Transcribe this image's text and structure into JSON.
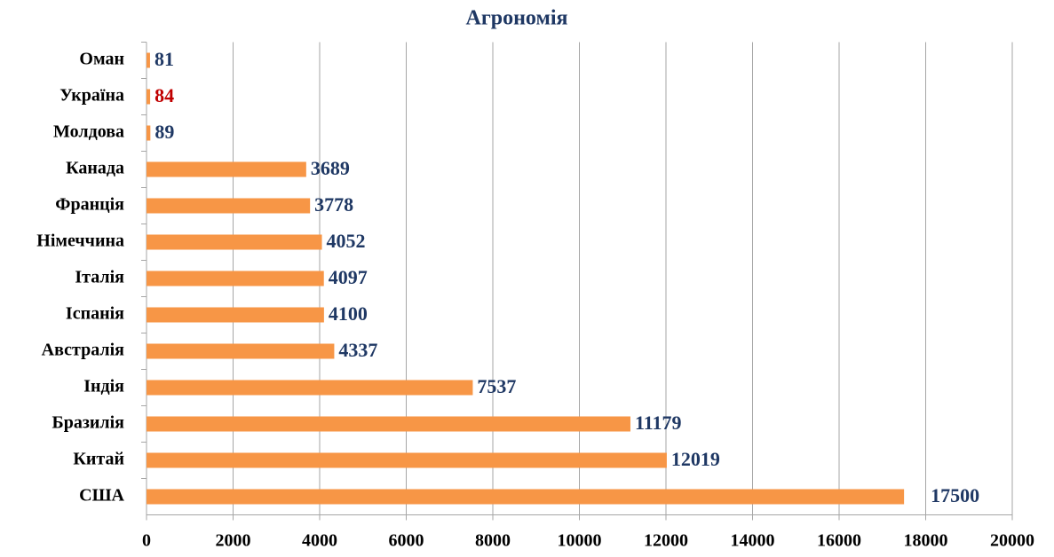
{
  "chart_data": {
    "type": "barh",
    "title": "Агрономія",
    "categories": [
      "Оман",
      "Україна",
      "Молдова",
      "Канада",
      "Франція",
      "Німеччина",
      "Італія",
      "Іспанія",
      "Австралія",
      "Індія",
      "Бразилія",
      "Китай",
      "США"
    ],
    "values": [
      81,
      84,
      89,
      3689,
      3778,
      4052,
      4097,
      4100,
      4337,
      7537,
      11179,
      12019,
      17500
    ],
    "color": "#f79646",
    "value_label_colors": [
      "#1f3864",
      "#c00000",
      "#1f3864",
      "#1f3864",
      "#1f3864",
      "#1f3864",
      "#1f3864",
      "#1f3864",
      "#1f3864",
      "#1f3864",
      "#1f3864",
      "#1f3864",
      "#1f3864"
    ],
    "xlim": [
      0,
      20000
    ],
    "xticks": [
      0,
      2000,
      4000,
      6000,
      8000,
      10000,
      12000,
      14000,
      16000,
      18000,
      20000
    ],
    "grid": true
  }
}
